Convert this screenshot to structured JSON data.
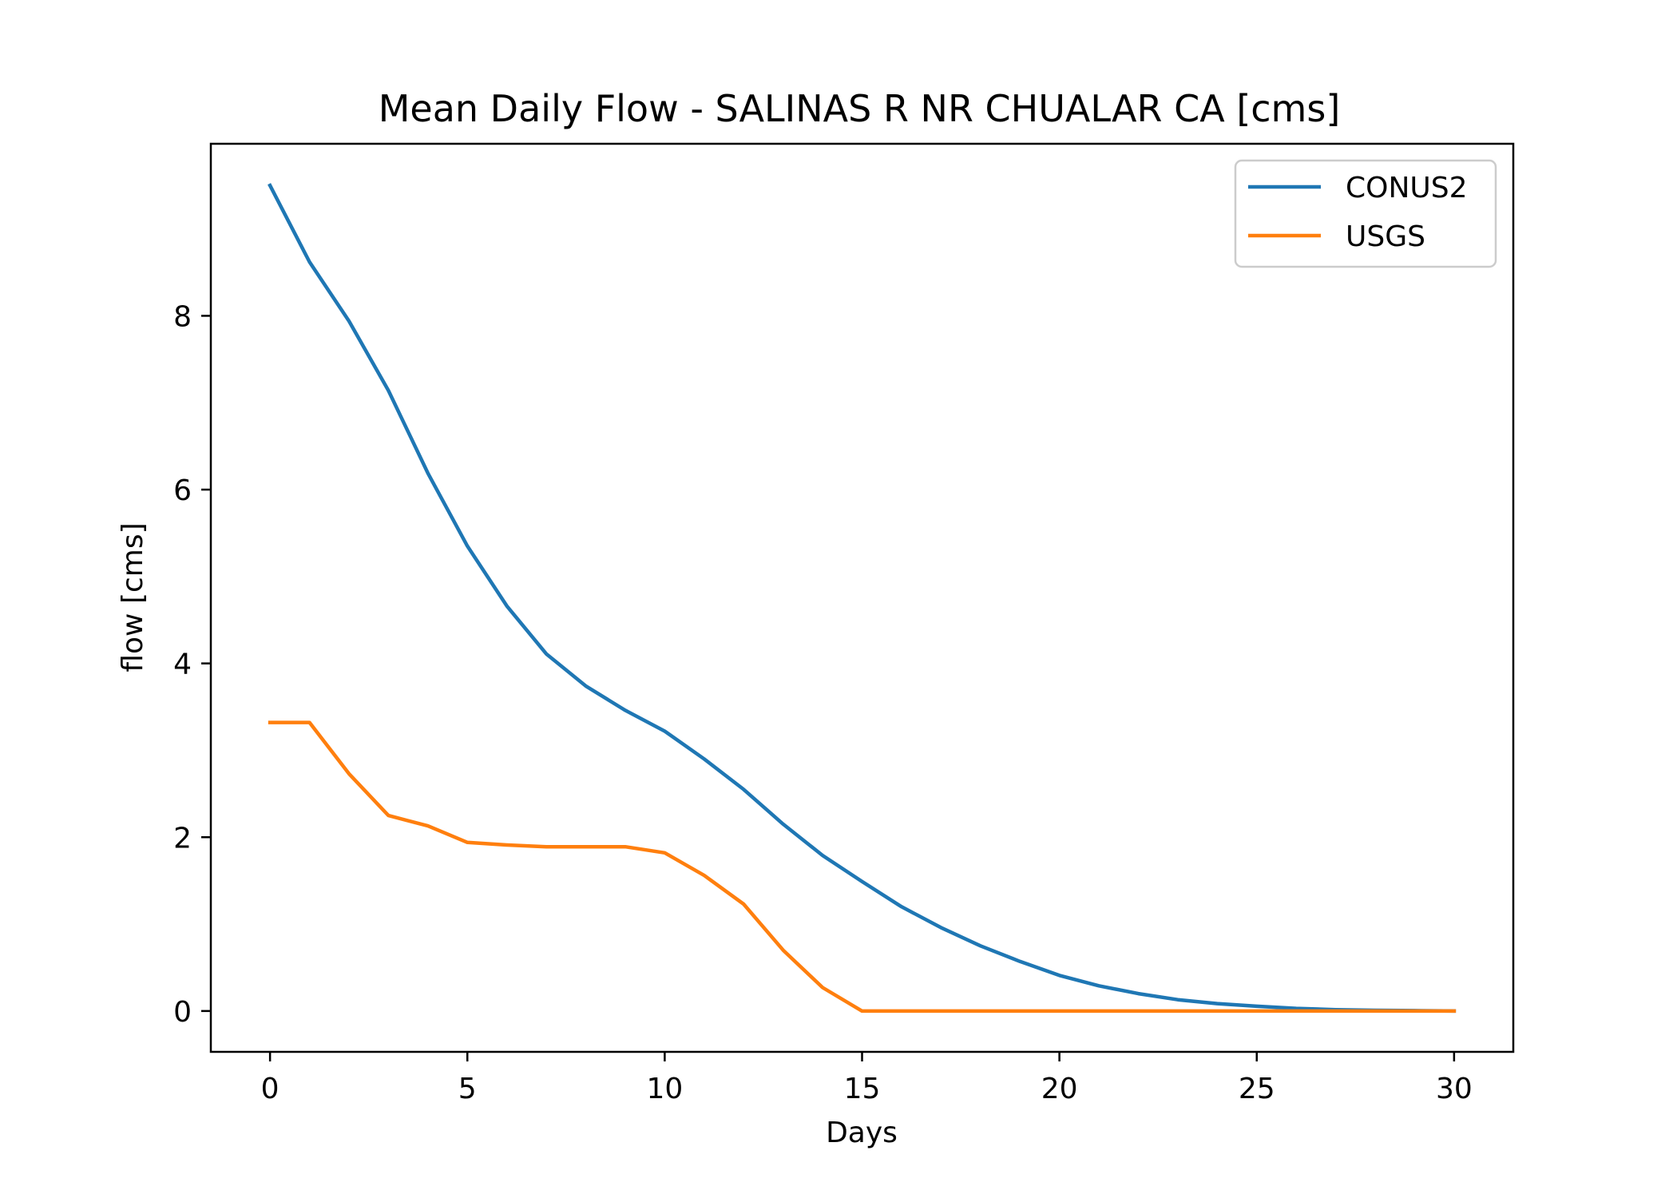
{
  "chart_data": {
    "type": "line",
    "title": "Mean Daily Flow - SALINAS R NR CHUALAR CA [cms]",
    "xlabel": "Days",
    "ylabel": "flow [cms]",
    "xlim": [
      -1.5,
      31.5
    ],
    "ylim": [
      -0.47,
      9.98
    ],
    "xticks": [
      0,
      5,
      10,
      15,
      20,
      25,
      30
    ],
    "yticks": [
      0,
      2,
      4,
      6,
      8
    ],
    "xtick_labels": [
      "0",
      "5",
      "10",
      "15",
      "20",
      "25",
      "30"
    ],
    "ytick_labels": [
      "0",
      "2",
      "4",
      "6",
      "8"
    ],
    "grid": false,
    "legend_position": "top-right",
    "x": [
      0,
      1,
      2,
      3,
      4,
      5,
      6,
      7,
      8,
      9,
      10,
      11,
      12,
      13,
      14,
      15,
      16,
      17,
      18,
      19,
      20,
      21,
      22,
      23,
      24,
      25,
      26,
      27,
      28,
      29,
      30
    ],
    "series": [
      {
        "name": "CONUS2",
        "color": "#1f77b4",
        "values": [
          9.5,
          8.62,
          7.94,
          7.14,
          6.19,
          5.35,
          4.66,
          4.11,
          3.74,
          3.46,
          3.22,
          2.9,
          2.55,
          2.15,
          1.79,
          1.49,
          1.2,
          0.96,
          0.75,
          0.57,
          0.41,
          0.29,
          0.2,
          0.13,
          0.085,
          0.055,
          0.03,
          0.015,
          0.008,
          0.004,
          0.0
        ]
      },
      {
        "name": "USGS",
        "color": "#ff7f0e",
        "values": [
          3.32,
          3.32,
          2.73,
          2.25,
          2.13,
          1.94,
          1.91,
          1.89,
          1.89,
          1.89,
          1.82,
          1.56,
          1.23,
          0.7,
          0.27,
          0.0,
          0.0,
          0.0,
          0.0,
          0.0,
          0.0,
          0.0,
          0.0,
          0.0,
          0.0,
          0.0,
          0.0,
          0.0,
          0.0,
          0.0,
          0.0
        ]
      }
    ]
  }
}
